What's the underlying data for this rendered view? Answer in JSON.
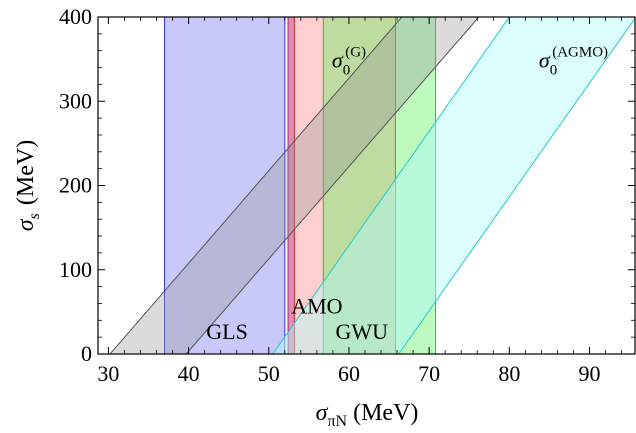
{
  "chart_data": {
    "type": "area",
    "xlabel": {
      "symbol": "σ",
      "subscript": "πN",
      "unit": "(MeV)"
    },
    "ylabel": {
      "symbol": "σ",
      "subscript": "s",
      "unit": "(MeV)"
    },
    "xlim": [
      28.7,
      95.8
    ],
    "ylim": [
      0,
      400
    ],
    "xticks": [
      30,
      40,
      50,
      60,
      70,
      80,
      90
    ],
    "yticks": [
      0,
      100,
      200,
      300,
      400
    ],
    "xtick_labels": [
      "30",
      "40",
      "50",
      "60",
      "70",
      "80",
      "90"
    ],
    "ytick_labels": [
      "0",
      "100",
      "200",
      "300",
      "400"
    ],
    "vertical_bands": [
      {
        "name": "GLS",
        "x_min": 37.0,
        "x_max": 52.0,
        "fill": "#6e6ef0",
        "stroke": "#3333cc",
        "opacity": 0.38
      },
      {
        "name": "AMO",
        "x_min": 52.4,
        "x_max": 53.2,
        "fill": "#c0307a",
        "stroke": "#aa2266",
        "opacity": 0.55
      },
      {
        "name": "",
        "x_min": 53.2,
        "x_max": 65.8,
        "fill": "#ff8080",
        "stroke": "#dd3333",
        "opacity": 0.38
      },
      {
        "name": "GWU",
        "x_min": 56.8,
        "x_max": 70.8,
        "fill": "#55ee55",
        "stroke": "#33bb33",
        "opacity": 0.38
      }
    ],
    "diagonal_bands": [
      {
        "name": "σ0(G)",
        "label_base": "σ",
        "label_sub": "0",
        "label_sup": "(G)",
        "lower_line": [
          [
            30.2,
            0
          ],
          [
            66.6,
            400
          ]
        ],
        "upper_line": [
          [
            39.7,
            0
          ],
          [
            76.2,
            400
          ]
        ],
        "fill": "#999999",
        "stroke": "#555555",
        "opacity": 0.35
      },
      {
        "name": "σ0(AGMO)",
        "label_base": "σ",
        "label_sub": "0",
        "label_sup": "(AGMO)",
        "lower_line": [
          [
            50.5,
            0
          ],
          [
            80.0,
            400
          ]
        ],
        "upper_line": [
          [
            66.2,
            0
          ],
          [
            95.8,
            400
          ]
        ],
        "fill": "#b0fafa",
        "stroke": "#22cccc",
        "opacity": 0.45
      }
    ],
    "annotations": [
      {
        "text": "GLS",
        "x": 44.8,
        "y": 18
      },
      {
        "text": "AMO",
        "x": 56.0,
        "y": 48
      },
      {
        "text": "GWU",
        "x": 61.6,
        "y": 18
      },
      {
        "text": "σ0(G)",
        "x": 60.0,
        "y": 340
      },
      {
        "text": "σ0(AGMO)",
        "x": 88.0,
        "y": 340
      }
    ],
    "grid": false,
    "legend": "none"
  }
}
